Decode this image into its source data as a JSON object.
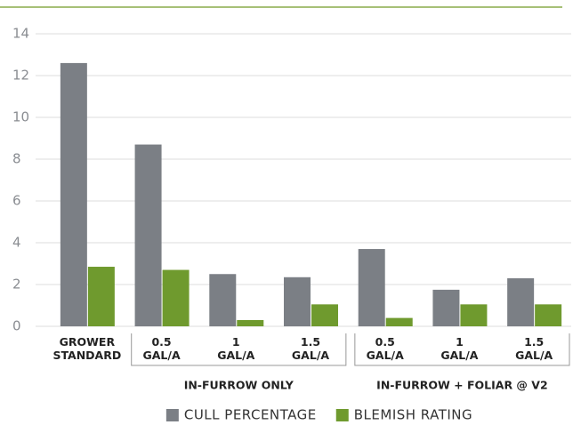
{
  "chart_data": {
    "type": "bar",
    "categories": [
      "GROWER STANDARD",
      "0.5 GAL/A",
      "1 GAL/A",
      "1.5 GAL/A",
      "0.5 GAL/A",
      "1 GAL/A",
      "1.5 GAL/A"
    ],
    "groups": [
      {
        "label": "IN-FURROW ONLY",
        "span": [
          1,
          3
        ]
      },
      {
        "label": "IN-FURROW + FOLIAR @ V2",
        "span": [
          4,
          6
        ]
      }
    ],
    "series": [
      {
        "name": "CULL PERCENTAGE",
        "color": "#7b7f85",
        "values": [
          12.6,
          8.7,
          2.5,
          2.35,
          3.7,
          1.75,
          2.3
        ]
      },
      {
        "name": "BLEMISH RATING",
        "color": "#6f9a2e",
        "values": [
          2.85,
          2.7,
          0.3,
          1.05,
          0.4,
          1.05,
          1.05
        ]
      }
    ],
    "ylim": [
      0,
      14
    ],
    "yticks": [
      0,
      2,
      4,
      6,
      8,
      10,
      12,
      14
    ],
    "grid": true
  }
}
